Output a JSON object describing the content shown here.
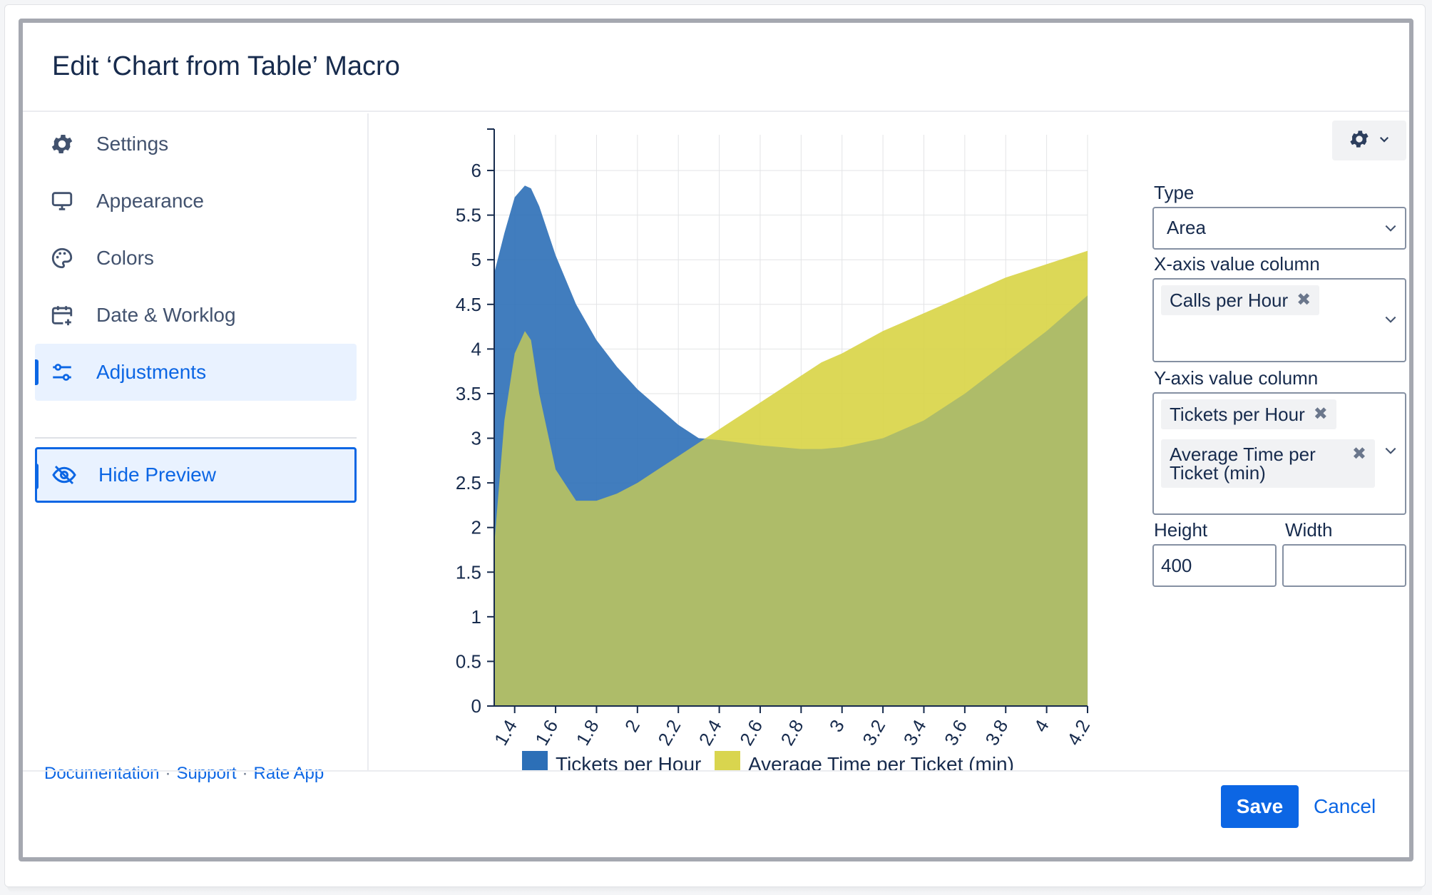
{
  "dialog": {
    "title": "Edit ‘Chart from Table’ Macro"
  },
  "sidebar": {
    "items": [
      {
        "label": "Settings",
        "icon": "gear-icon"
      },
      {
        "label": "Appearance",
        "icon": "monitor-icon"
      },
      {
        "label": "Colors",
        "icon": "palette-icon"
      },
      {
        "label": "Date & Worklog",
        "icon": "calendar-add-icon"
      },
      {
        "label": "Adjustments",
        "icon": "sliders-icon",
        "active": true
      }
    ],
    "hide_preview": {
      "label": "Hide Preview",
      "icon": "eye-off-icon"
    },
    "footer": {
      "documentation": "Documentation",
      "support": "Support",
      "rate": "Rate App",
      "separator": "·"
    }
  },
  "panel": {
    "type_label": "Type",
    "type_value": "Area",
    "x_label": "X-axis value column",
    "x_tags": [
      "Calls per Hour"
    ],
    "y_label": "Y-axis value column",
    "y_tags": [
      "Tickets per Hour",
      "Average Time per Ticket (min)"
    ],
    "height_label": "Height",
    "height_value": "400",
    "width_label": "Width",
    "width_value": ""
  },
  "buttons": {
    "save": "Save",
    "cancel": "Cancel"
  },
  "colors": {
    "accent": "#0c66e4",
    "series1": "#2c6fb7",
    "series2": "#d9d54e"
  },
  "chart_data": {
    "type": "area",
    "title": "",
    "xlabel": "",
    "ylabel": "",
    "xlim": [
      1.3,
      4.2
    ],
    "ylim": [
      0,
      6.4
    ],
    "x_ticks": [
      "1.4",
      "1.6",
      "1.8",
      "2",
      "2.2",
      "2.4",
      "2.6",
      "2.8",
      "3",
      "3.2",
      "3.4",
      "3.6",
      "3.8",
      "4",
      "4.2"
    ],
    "y_ticks": [
      "0",
      "0.5",
      "1",
      "1.5",
      "2",
      "2.5",
      "3",
      "3.5",
      "4",
      "4.5",
      "5",
      "5.5",
      "6"
    ],
    "grid": true,
    "legend": "bottom",
    "series": [
      {
        "name": "Tickets per Hour",
        "color": "#2c6fb7",
        "x": [
          1.3,
          1.35,
          1.4,
          1.45,
          1.48,
          1.52,
          1.6,
          1.7,
          1.8,
          1.9,
          2.0,
          2.1,
          2.2,
          2.3,
          2.4,
          2.5,
          2.6,
          2.7,
          2.8,
          2.9,
          3.0,
          3.2,
          3.4,
          3.6,
          3.8,
          4.0,
          4.2
        ],
        "y": [
          4.85,
          5.3,
          5.7,
          5.83,
          5.8,
          5.6,
          5.05,
          4.5,
          4.1,
          3.8,
          3.55,
          3.35,
          3.15,
          3.0,
          2.98,
          2.95,
          2.92,
          2.9,
          2.88,
          2.88,
          2.9,
          3.0,
          3.2,
          3.5,
          3.85,
          4.2,
          4.6
        ]
      },
      {
        "name": "Average Time per Ticket (min)",
        "color": "#d9d54e",
        "x": [
          1.3,
          1.35,
          1.4,
          1.45,
          1.48,
          1.52,
          1.6,
          1.7,
          1.8,
          1.9,
          2.0,
          2.1,
          2.2,
          2.3,
          2.4,
          2.5,
          2.6,
          2.7,
          2.8,
          2.9,
          3.0,
          3.2,
          3.4,
          3.6,
          3.8,
          4.0,
          4.2
        ],
        "y": [
          1.8,
          3.2,
          3.95,
          4.2,
          4.1,
          3.5,
          2.65,
          2.3,
          2.3,
          2.38,
          2.5,
          2.65,
          2.8,
          2.95,
          3.1,
          3.25,
          3.4,
          3.55,
          3.7,
          3.85,
          3.95,
          4.2,
          4.4,
          4.6,
          4.8,
          4.95,
          5.1
        ]
      }
    ]
  }
}
